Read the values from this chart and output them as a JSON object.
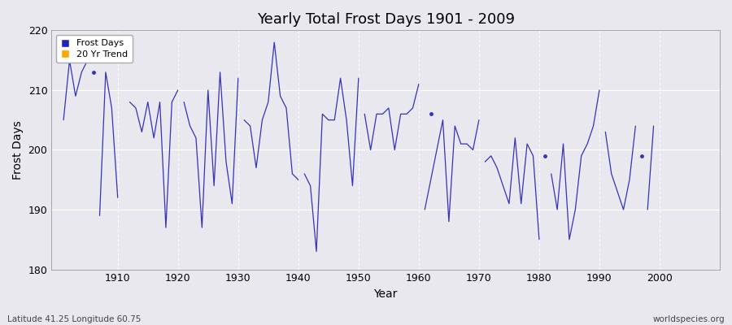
{
  "title": "Yearly Total Frost Days 1901 - 2009",
  "xlabel": "Year",
  "ylabel": "Frost Days",
  "bottom_left_label": "Latitude 41.25 Longitude 60.75",
  "bottom_right_label": "worldspecies.org",
  "legend_entries": [
    "Frost Days",
    "20 Yr Trend"
  ],
  "legend_colors": [
    "#2222bb",
    "#ffa500"
  ],
  "line_color": "#3333bb",
  "bg_color": "#e8e8ee",
  "ylim": [
    180,
    220
  ],
  "xlim": [
    1899,
    2010
  ],
  "yticks": [
    180,
    190,
    200,
    210,
    220
  ],
  "xticks": [
    1910,
    1920,
    1930,
    1940,
    1950,
    1960,
    1970,
    1980,
    1990,
    2000
  ],
  "segments": [
    {
      "years": [
        1901,
        1902,
        1903,
        1904,
        1905
      ],
      "values": [
        205,
        215,
        209,
        213,
        215
      ]
    },
    {
      "years": [
        1907,
        1908,
        1909,
        1910
      ],
      "values": [
        189,
        213,
        207,
        192
      ]
    },
    {
      "years": [
        1912,
        1913,
        1914,
        1915,
        1916,
        1917,
        1918,
        1919,
        1920
      ],
      "values": [
        208,
        207,
        203,
        208,
        202,
        208,
        187,
        208,
        210
      ]
    },
    {
      "years": [
        1921,
        1922,
        1923,
        1924,
        1925,
        1926,
        1927,
        1928,
        1929,
        1930
      ],
      "values": [
        208,
        204,
        202,
        187,
        210,
        194,
        213,
        198,
        191,
        212
      ]
    },
    {
      "years": [
        1931,
        1932,
        1933,
        1934,
        1935,
        1936,
        1937,
        1938,
        1939,
        1940
      ],
      "values": [
        205,
        204,
        197,
        205,
        208,
        218,
        209,
        207,
        196,
        195
      ]
    },
    {
      "years": [
        1941,
        1942,
        1943,
        1944,
        1945,
        1946,
        1947,
        1948,
        1949,
        1950
      ],
      "values": [
        196,
        194,
        183,
        206,
        205,
        205,
        212,
        205,
        194,
        212
      ]
    },
    {
      "years": [
        1951,
        1952,
        1953,
        1954,
        1955,
        1956,
        1957,
        1958,
        1959,
        1960
      ],
      "values": [
        206,
        200,
        206,
        206,
        207,
        200,
        206,
        206,
        207,
        211
      ]
    },
    {
      "years": [
        1961,
        1963,
        1964,
        1965,
        1966,
        1967,
        1968,
        1969,
        1970
      ],
      "values": [
        190,
        200,
        205,
        188,
        204,
        201,
        201,
        200,
        205
      ]
    },
    {
      "years": [
        1971,
        1972,
        1973,
        1974,
        1975,
        1976,
        1977,
        1978,
        1979,
        1980
      ],
      "values": [
        198,
        199,
        197,
        194,
        191,
        202,
        191,
        201,
        199,
        185
      ]
    },
    {
      "years": [
        1982,
        1983,
        1984,
        1985,
        1986,
        1987,
        1988,
        1989,
        1990
      ],
      "values": [
        196,
        190,
        201,
        185,
        190,
        199,
        201,
        204,
        210
      ]
    },
    {
      "years": [
        1991,
        1992,
        1993,
        1994,
        1995,
        1996
      ],
      "values": [
        203,
        196,
        193,
        190,
        195,
        204
      ]
    },
    {
      "years": [
        1998,
        1999
      ],
      "values": [
        190,
        204
      ]
    }
  ],
  "isolated_points": [
    {
      "year": 1906,
      "value": 213
    },
    {
      "year": 1962,
      "value": 206
    },
    {
      "year": 1981,
      "value": 199
    },
    {
      "year": 1997,
      "value": 199
    }
  ]
}
